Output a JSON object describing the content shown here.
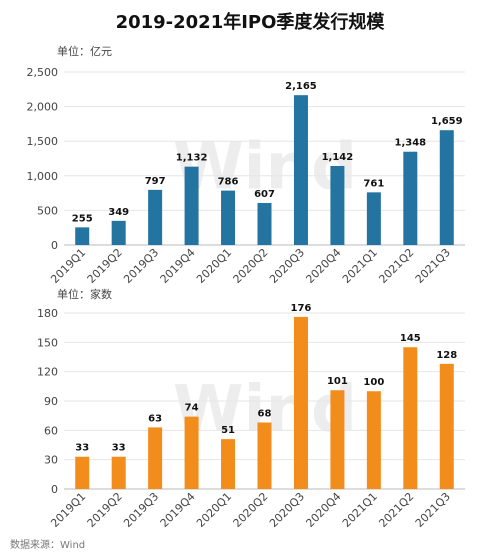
{
  "title": "2019-2021年IPO季度发行规模",
  "source": "数据来源：Wind",
  "watermark": "Wind",
  "chart_data": [
    {
      "type": "bar",
      "unit_label": "单位：亿元",
      "color": "#2374a0",
      "categories": [
        "2019Q1",
        "2019Q2",
        "2019Q3",
        "2019Q4",
        "2020Q1",
        "2020Q2",
        "2020Q3",
        "2020Q4",
        "2021Q1",
        "2021Q2",
        "2021Q3"
      ],
      "values": [
        255,
        349,
        797,
        1132,
        786,
        607,
        2165,
        1142,
        761,
        1348,
        1659
      ],
      "value_labels": [
        "255",
        "349",
        "797",
        "1,132",
        "786",
        "607",
        "2,165",
        "1,142",
        "761",
        "1,348",
        "1,659"
      ],
      "ylim": [
        0,
        2500
      ],
      "yticks": [
        0,
        500,
        {
          "value": 1000,
          "label": "1,000"
        },
        {
          "value": 1500,
          "label": "1,500"
        },
        {
          "value": 2000,
          "label": "2,000"
        },
        {
          "value": 2500,
          "label": "2,500"
        }
      ],
      "grid": true
    },
    {
      "type": "bar",
      "unit_label": "单位：家数",
      "color": "#f28c1b",
      "categories": [
        "2019Q1",
        "2019Q2",
        "2019Q3",
        "2019Q4",
        "2020Q1",
        "2020Q2",
        "2020Q3",
        "2020Q4",
        "2021Q1",
        "2021Q2",
        "2021Q3"
      ],
      "values": [
        33,
        33,
        63,
        74,
        51,
        68,
        176,
        101,
        100,
        145,
        128
      ],
      "ylim": [
        0,
        180
      ],
      "yticks": [
        0,
        30,
        60,
        90,
        120,
        150,
        180
      ],
      "grid": true
    }
  ]
}
